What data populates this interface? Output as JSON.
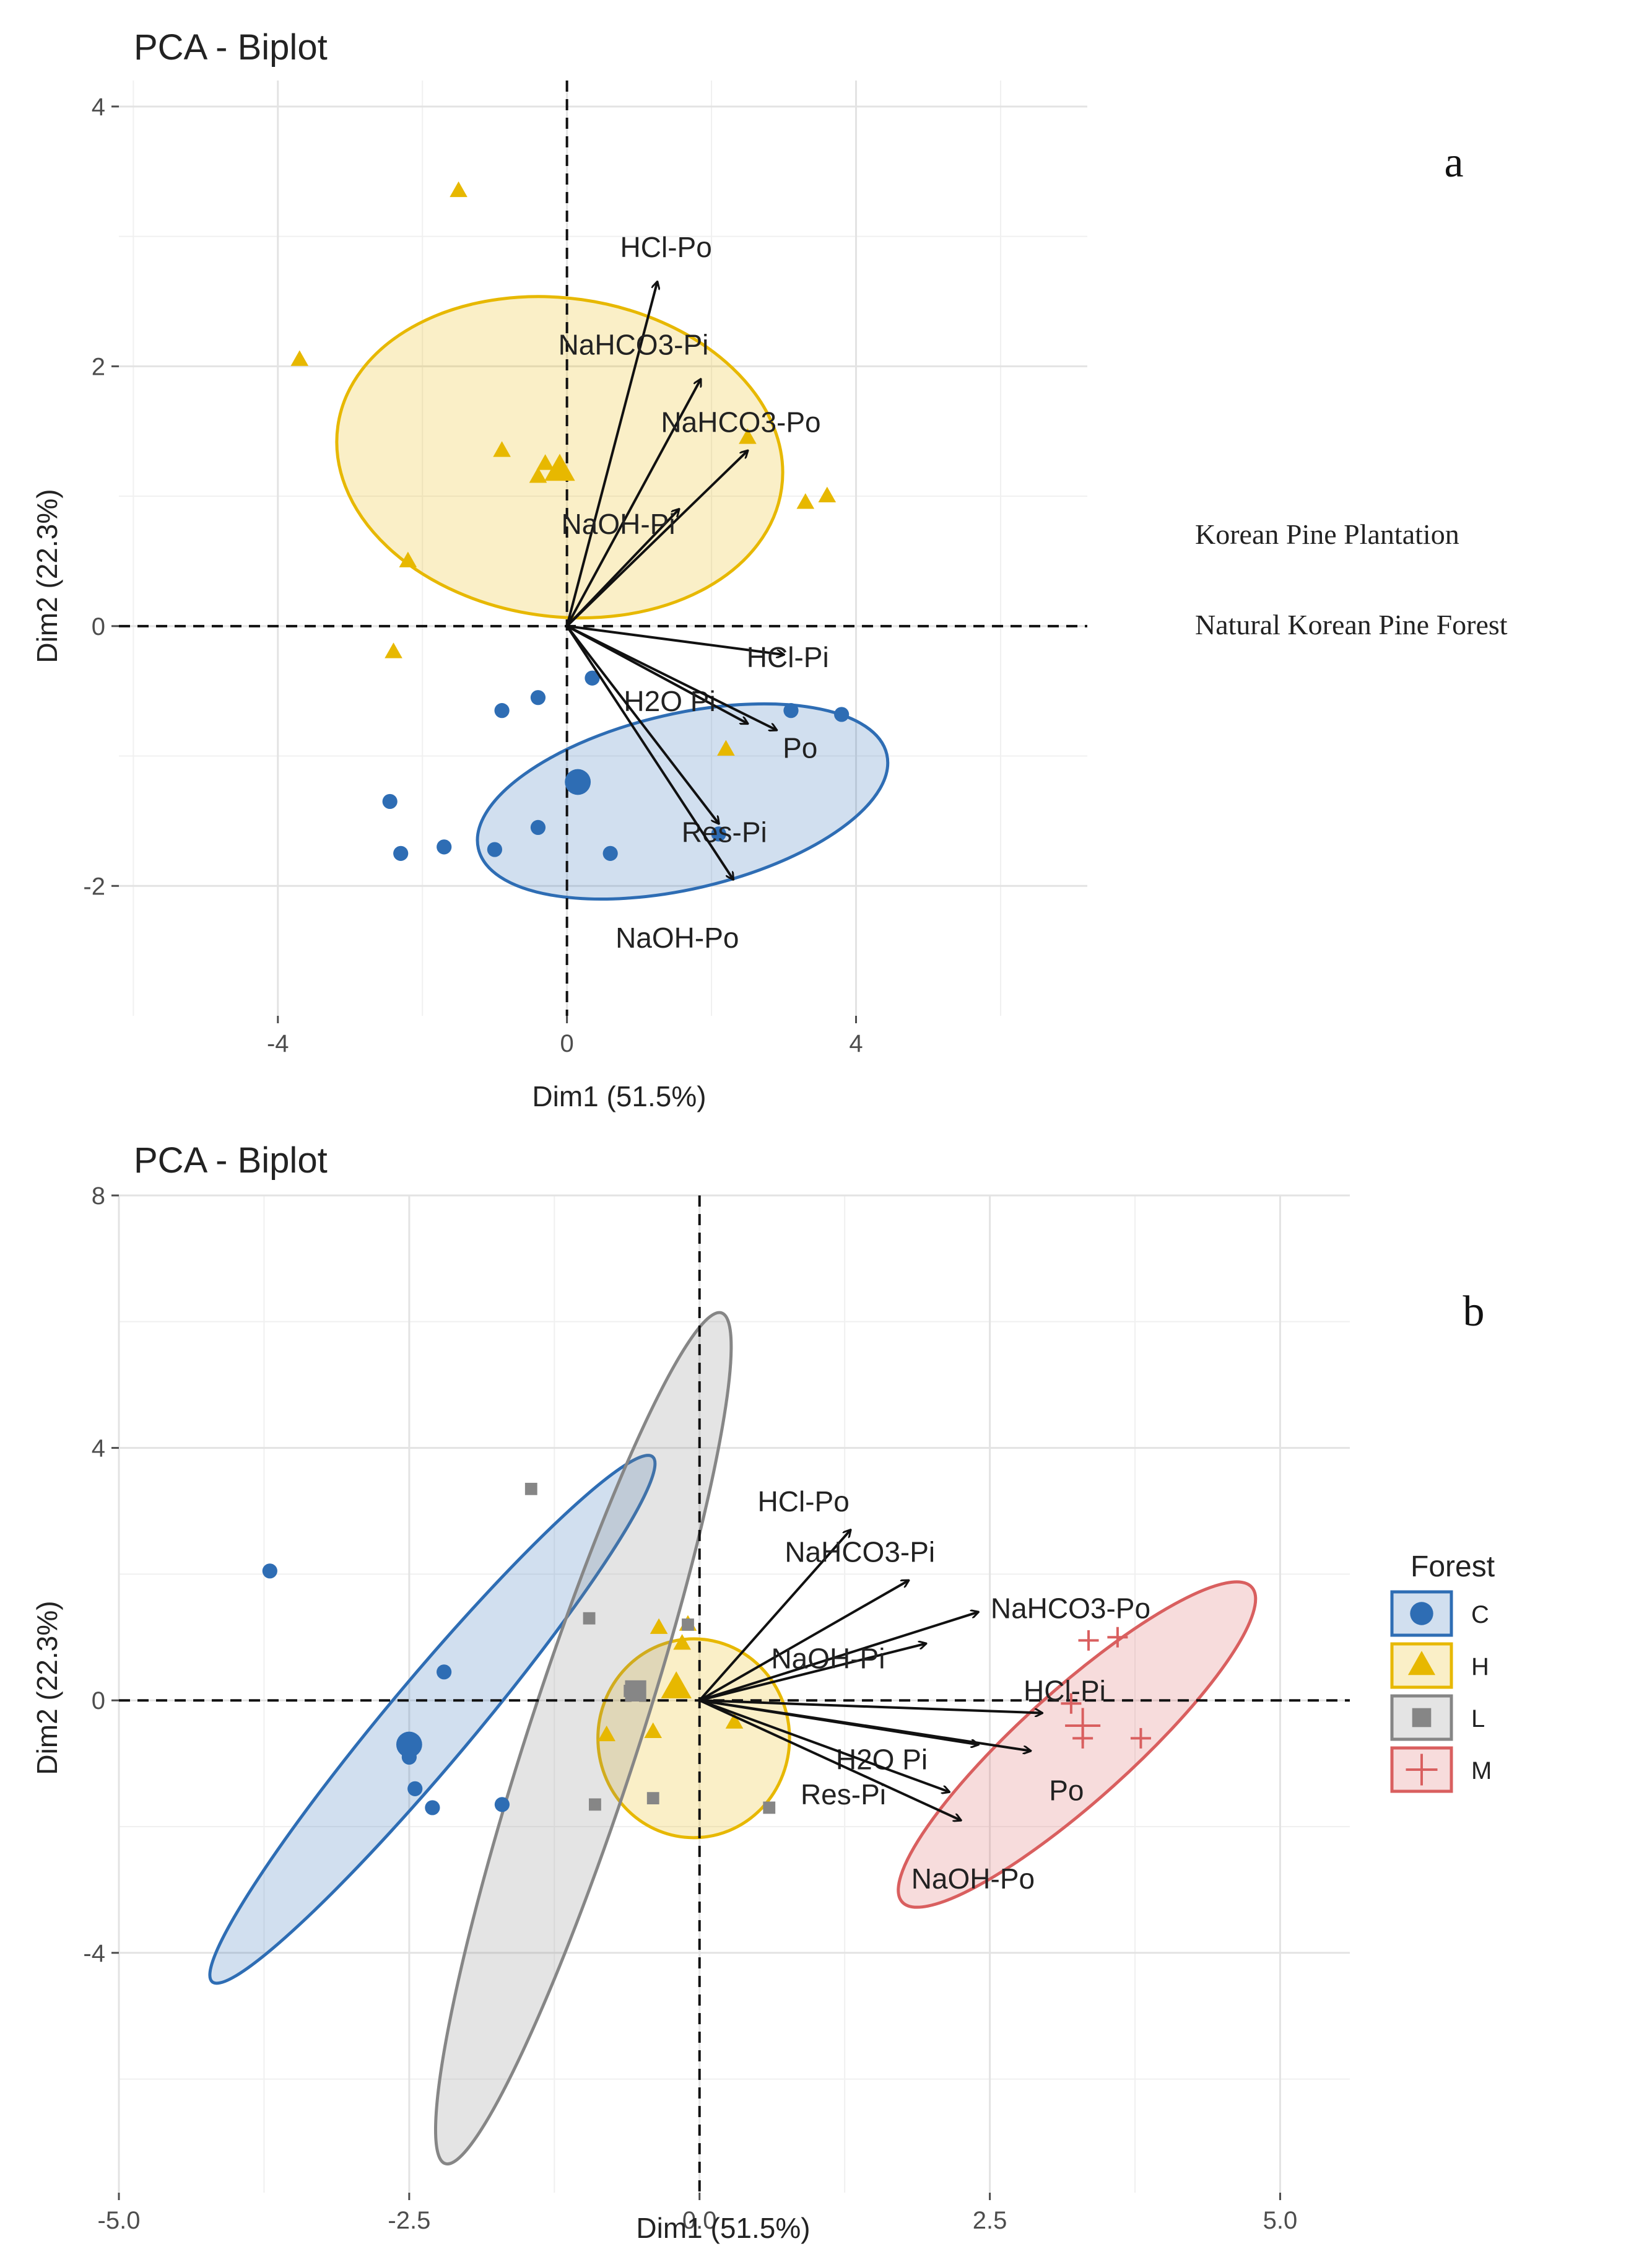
{
  "chart_data": [
    {
      "panel": "a",
      "type": "scatter",
      "title": "PCA - Biplot",
      "xlabel": "Dim1 (51.5%)",
      "ylabel": "Dim2 (22.3%)",
      "xlim": [
        -6.2,
        7.2
      ],
      "ylim": [
        -3.0,
        4.2
      ],
      "xticks": [
        -4,
        0,
        4
      ],
      "yticks": [
        -2,
        0,
        2,
        4
      ],
      "xtick_labels": [
        "-4",
        "0",
        "4"
      ],
      "ytick_labels": [
        "-2",
        "0",
        "2",
        "4"
      ],
      "grid": true,
      "groups": [
        {
          "name": "Korean Pine Plantation",
          "marker": "triangle",
          "color": "#E7B800",
          "centroid": [
            -0.1,
            1.2
          ],
          "ellipse": {
            "cx": -0.1,
            "cy": 1.3,
            "rx": 6.2,
            "ry": 2.45,
            "angle": -8
          },
          "points": [
            [
              -1.5,
              3.35
            ],
            [
              -3.7,
              2.05
            ],
            [
              -0.9,
              1.35
            ],
            [
              -0.4,
              1.15
            ],
            [
              -0.1,
              1.2
            ],
            [
              -0.3,
              1.25
            ],
            [
              2.5,
              1.45
            ],
            [
              3.3,
              0.95
            ],
            [
              3.6,
              1.0
            ],
            [
              -2.2,
              0.5
            ],
            [
              -2.4,
              -0.2
            ],
            [
              2.2,
              -0.95
            ]
          ]
        },
        {
          "name": "Natural Korean Pine Forest",
          "marker": "circle",
          "color": "#2E6DB4",
          "centroid": [
            0.15,
            -1.2
          ],
          "ellipse": {
            "cx": 1.6,
            "cy": -1.35,
            "rx": 5.8,
            "ry": 1.35,
            "angle": 13
          },
          "points": [
            [
              -0.9,
              -0.65
            ],
            [
              -0.4,
              -0.55
            ],
            [
              0.35,
              -0.4
            ],
            [
              3.1,
              -0.65
            ],
            [
              3.8,
              -0.68
            ],
            [
              -2.45,
              -1.35
            ],
            [
              -2.3,
              -1.75
            ],
            [
              -1.7,
              -1.7
            ],
            [
              -1.0,
              -1.72
            ],
            [
              -0.4,
              -1.55
            ],
            [
              0.6,
              -1.75
            ],
            [
              2.1,
              -1.6
            ]
          ]
        }
      ],
      "loadings": [
        {
          "name": "HCl-Po",
          "x": 1.25,
          "y": 2.65
        },
        {
          "name": "NaHCO3-Pi",
          "x": 1.85,
          "y": 1.9
        },
        {
          "name": "NaHCO3-Po",
          "x": 2.5,
          "y": 1.35
        },
        {
          "name": "NaOH-Pi",
          "x": 1.55,
          "y": 0.9
        },
        {
          "name": "HCl-Pi",
          "x": 3.0,
          "y": -0.22
        },
        {
          "name": "H2O Pi",
          "x": 2.5,
          "y": -0.75
        },
        {
          "name": "Po",
          "x": 2.9,
          "y": -0.8
        },
        {
          "name": "Res-Pi",
          "x": 2.1,
          "y": -1.52
        },
        {
          "name": "NaOH-Po",
          "x": 2.3,
          "y": -1.95
        }
      ],
      "annotations": [
        "a",
        "Korean Pine Plantation",
        "Natural Korean Pine Forest"
      ]
    },
    {
      "panel": "b",
      "type": "scatter",
      "title": "PCA - Biplot",
      "xlabel": "Dim1 (51.5%)",
      "ylabel": "Dim2 (22.3%)",
      "xlim": [
        -5.0,
        5.6
      ],
      "ylim": [
        -7.8,
        8.0
      ],
      "xticks": [
        -5.0,
        -2.5,
        0.0,
        2.5,
        5.0
      ],
      "yticks": [
        -4,
        0,
        4,
        8
      ],
      "xtick_labels": [
        "-5.0",
        "-2.5",
        "0.0",
        "2.5",
        "5.0"
      ],
      "ytick_labels": [
        "-4",
        "0",
        "4",
        "8"
      ],
      "grid": true,
      "legend": {
        "title": "Forest",
        "position": "right"
      },
      "groups": [
        {
          "name": "C",
          "marker": "circle",
          "color": "#2E6DB4",
          "centroid": [
            -2.5,
            -0.7
          ],
          "ellipse": {
            "cx": -2.3,
            "cy": -0.3,
            "rx": 5.9,
            "ry": 1.35,
            "angle": 50
          },
          "points": [
            [
              -3.7,
              2.05
            ],
            [
              -2.2,
              0.45
            ],
            [
              -2.5,
              -0.9
            ],
            [
              -2.3,
              -1.7
            ],
            [
              -2.45,
              -1.4
            ],
            [
              -1.7,
              -1.65
            ]
          ]
        },
        {
          "name": "H",
          "marker": "triangle",
          "color": "#E7B800",
          "centroid": [
            -0.2,
            0.2
          ],
          "ellipse": {
            "cx": -0.05,
            "cy": -0.6,
            "rx": 1.65,
            "ry": 3.15,
            "angle": 0
          },
          "points": [
            [
              -0.35,
              1.15
            ],
            [
              -0.15,
              0.9
            ],
            [
              -0.2,
              0.25
            ],
            [
              -0.4,
              -0.5
            ],
            [
              -0.8,
              -0.55
            ],
            [
              0.3,
              -0.35
            ],
            [
              -0.1,
              1.2
            ]
          ]
        },
        {
          "name": "L",
          "marker": "square",
          "color": "#868686",
          "centroid": [
            -0.55,
            0.15
          ],
          "ellipse": {
            "cx": -1.0,
            "cy": -0.6,
            "rx": 7.7,
            "ry": 1.75,
            "angle": 72
          },
          "points": [
            [
              -1.45,
              3.35
            ],
            [
              -0.95,
              1.3
            ],
            [
              -0.9,
              -1.65
            ],
            [
              -0.4,
              -1.55
            ],
            [
              0.6,
              -1.7
            ],
            [
              -0.6,
              0.15
            ],
            [
              -0.1,
              1.2
            ]
          ]
        },
        {
          "name": "M",
          "marker": "plus",
          "color": "#D95F5F",
          "centroid": [
            3.3,
            -0.4
          ],
          "ellipse": {
            "cx": 3.25,
            "cy": -0.7,
            "rx": 4.05,
            "ry": 1.75,
            "angle": 42
          },
          "points": [
            [
              3.35,
              0.95
            ],
            [
              3.6,
              1.0
            ],
            [
              3.3,
              -0.6
            ],
            [
              3.8,
              -0.6
            ],
            [
              3.2,
              -0.05
            ]
          ]
        }
      ],
      "loadings": [
        {
          "name": "HCl-Po",
          "x": 1.3,
          "y": 2.7
        },
        {
          "name": "NaHCO3-Pi",
          "x": 1.8,
          "y": 1.9
        },
        {
          "name": "NaHCO3-Po",
          "x": 2.4,
          "y": 1.4
        },
        {
          "name": "NaOH-Pi",
          "x": 1.95,
          "y": 0.9
        },
        {
          "name": "HCl-Pi",
          "x": 2.95,
          "y": -0.2
        },
        {
          "name": "H2O Pi",
          "x": 2.4,
          "y": -0.7
        },
        {
          "name": "Po",
          "x": 2.85,
          "y": -0.8
        },
        {
          "name": "Res-Pi",
          "x": 2.15,
          "y": -1.45
        },
        {
          "name": "NaOH-Po",
          "x": 2.25,
          "y": -1.9
        }
      ],
      "annotations": [
        "b"
      ]
    }
  ],
  "notes": {
    "panel_a_letter": "a",
    "panel_b_letter": "b",
    "group_a1_label": "Korean Pine Plantation",
    "group_a2_label": "Natural Korean Pine Forest"
  },
  "colors": {
    "blue": "#2E6DB4",
    "yellow": "#E7B800",
    "grey": "#868686",
    "red": "#D95F5F"
  }
}
